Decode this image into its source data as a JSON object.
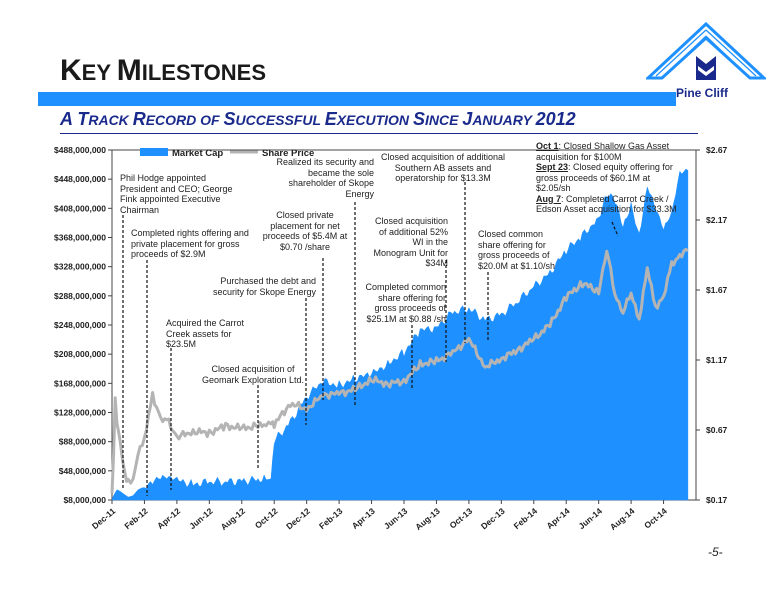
{
  "header": {
    "title_first": "K",
    "title_rest_1": "EY ",
    "title_second": "M",
    "title_rest_2": "ILESTONES",
    "subtitle_parts": [
      "A ",
      "T",
      "RACK ",
      "R",
      "ECORD OF ",
      "S",
      "UCCESSFUL ",
      "E",
      "XECUTION ",
      "S",
      "INCE ",
      "J",
      "ANUARY ",
      "2012"
    ],
    "logo_name": "Pine Cliff",
    "page_number": "-5-"
  },
  "colors": {
    "market_cap": "#1e90ff",
    "share_price": "#b4b4b4",
    "title_blue": "#1a2a8c"
  },
  "chart_data": {
    "type": "area",
    "legend": [
      "Market Cap",
      "Share Price"
    ],
    "legend_position": "top-left",
    "left_axis_ticks": [
      "$488,000,000",
      "$448,000,000",
      "$408,000,000",
      "$368,000,000",
      "$328,000,000",
      "$288,000,000",
      "$248,000,000",
      "$208,000,000",
      "$168,000,000",
      "$128,000,000",
      "$88,000,000",
      "$48,000,000",
      "$8,000,000"
    ],
    "right_axis_ticks": [
      "$2.67",
      "$2.17",
      "$1.67",
      "$1.17",
      "$0.67",
      "$0.17"
    ],
    "x_ticks": [
      "Dec-11",
      "Feb-12",
      "Apr-12",
      "Jun-12",
      "Aug-12",
      "Oct-12",
      "Dec-12",
      "Feb-13",
      "Apr-13",
      "Jun-13",
      "Aug-13",
      "Oct-13",
      "Dec-13",
      "Feb-14",
      "Apr-14",
      "Jun-14",
      "Aug-14",
      "Oct-14"
    ],
    "ylim_left": [
      8000000,
      488000000
    ],
    "ylim_right": [
      0.17,
      2.67
    ],
    "x_months": [
      0,
      0.1,
      0.2,
      0.3,
      0.5,
      0.8,
      1,
      1.3,
      1.6,
      2,
      2.5,
      3,
      3.5,
      4,
      5,
      6,
      7,
      8,
      9,
      9.5,
      9.8,
      10,
      11,
      12,
      13,
      14,
      15,
      16,
      17,
      18,
      19,
      20,
      21,
      22,
      23,
      24,
      25,
      26,
      27,
      28,
      29,
      30,
      30.5,
      31,
      31.5,
      32,
      32.5,
      33,
      33.5,
      34,
      34.5,
      35,
      35.5
    ],
    "market_cap": [
      9000000,
      14000000,
      18000000,
      22000000,
      20000000,
      15000000,
      12000000,
      14000000,
      22000000,
      26000000,
      35000000,
      40000000,
      38000000,
      35000000,
      30000000,
      32000000,
      33000000,
      34000000,
      36000000,
      38000000,
      42000000,
      88000000,
      115000000,
      150000000,
      170000000,
      165000000,
      175000000,
      180000000,
      195000000,
      210000000,
      240000000,
      245000000,
      265000000,
      270000000,
      255000000,
      262000000,
      280000000,
      300000000,
      320000000,
      350000000,
      370000000,
      395000000,
      430000000,
      420000000,
      380000000,
      410000000,
      370000000,
      440000000,
      410000000,
      380000000,
      400000000,
      455000000,
      460000000
    ],
    "share_price": [
      0.22,
      0.5,
      0.9,
      0.72,
      0.6,
      0.35,
      0.3,
      0.3,
      0.5,
      0.6,
      0.92,
      0.75,
      0.72,
      0.62,
      0.66,
      0.65,
      0.7,
      0.68,
      0.7,
      0.7,
      0.72,
      0.71,
      0.86,
      0.82,
      0.92,
      0.93,
      0.96,
      1.03,
      1.0,
      1.02,
      1.14,
      1.16,
      1.22,
      1.32,
      1.12,
      1.18,
      1.24,
      1.32,
      1.42,
      1.62,
      1.72,
      1.66,
      1.96,
      1.64,
      1.52,
      1.64,
      1.47,
      1.82,
      1.55,
      1.62,
      1.85,
      1.92,
      1.95
    ]
  },
  "annotations": [
    {
      "text": "Phil Hodge appointed President and CEO; George Fink appointed Executive Chairman"
    },
    {
      "text": "Completed rights offering and private placement for gross proceeds of $2.9M"
    },
    {
      "text": "Acquired the Carrot Creek assets for $23.5M"
    },
    {
      "text": "Closed acquisition of Geomark Exploration Ltd."
    },
    {
      "text": "Purchased the debt and security for Skope Energy"
    },
    {
      "text": "Closed private placement for net proceeds of  $5.4M at $0.70 /share"
    },
    {
      "text": "Realized its security and became the sole shareholder of Skope Energy"
    },
    {
      "text": "Completed common share offering for gross proceeds of $25.1M at $0.88 /sh"
    },
    {
      "text": "Closed acquisition of additional 52% WI in the Monogram Unit for $34M"
    },
    {
      "text": "Closed acquisition of additional Southern AB assets and operatorship for $13.3M"
    },
    {
      "text": "Closed common share offering for gross proceeds of $20.0M at $1.10/sh"
    },
    {
      "head": "Oct 1",
      "text": ": Closed Shallow Gas Asset acquisition for $100M"
    },
    {
      "head": "Sept 23",
      "text": ": Closed equity offering for gross proceeds of $60.1M at $2.05/sh"
    },
    {
      "head": "Aug 7",
      "text": ": Completed Carrot Creek / Edson Asset acquisition for $33.3M"
    }
  ]
}
